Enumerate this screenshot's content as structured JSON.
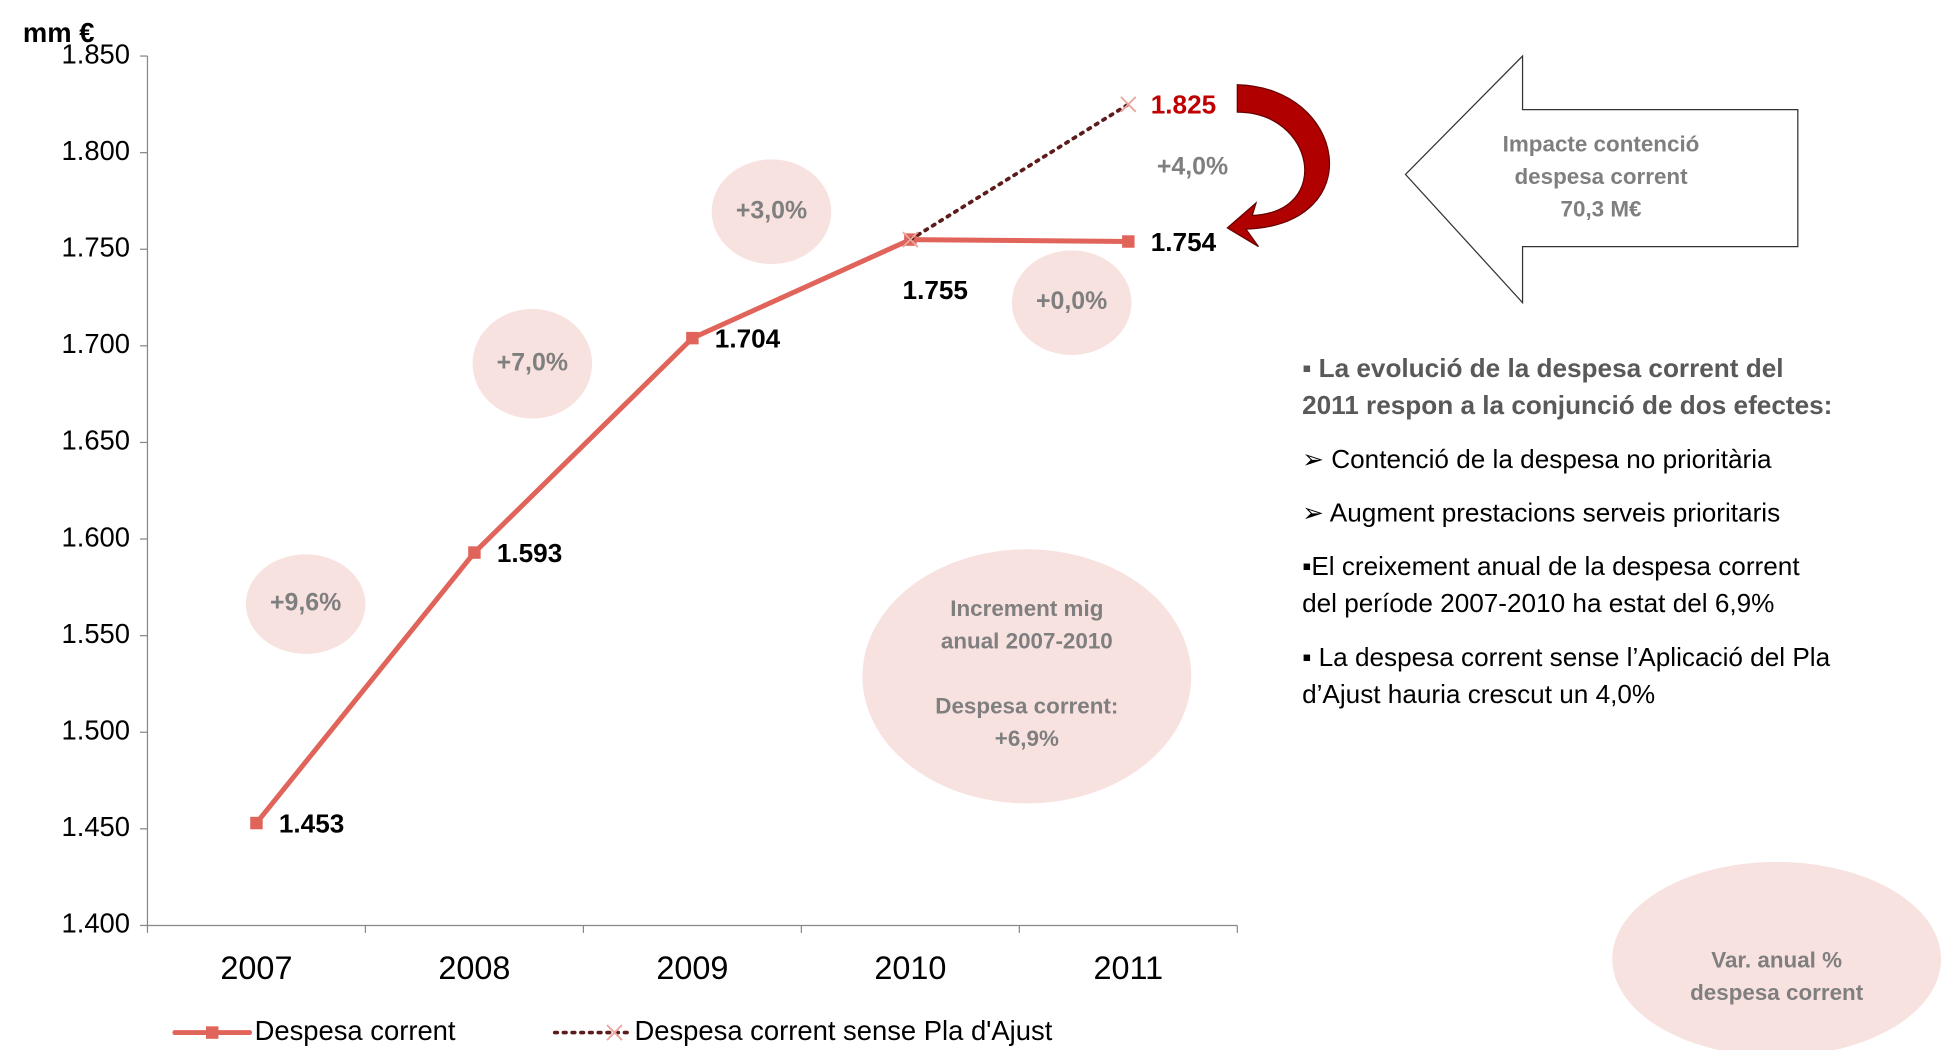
{
  "chart_data": {
    "type": "line",
    "y_label": "mm €",
    "categories": [
      "2007",
      "2008",
      "2009",
      "2010",
      "2011"
    ],
    "series": [
      {
        "name": "Despesa corrent",
        "color": "#e0645a",
        "values": [
          1453,
          1593,
          1704,
          1755,
          1754
        ],
        "value_labels": [
          "1.453",
          "1.593",
          "1.704",
          "1.755",
          "1.754"
        ]
      },
      {
        "name": "Despesa corrent sense Pla d'Ajust",
        "color": "#5c1c1c",
        "values": [
          null,
          null,
          null,
          1755,
          1825
        ],
        "value_labels": [
          null,
          null,
          null,
          null,
          "1.825"
        ]
      }
    ],
    "ylim": [
      1400,
      1850
    ],
    "yticks": [
      {
        "value": 1400,
        "label": "1.400"
      },
      {
        "value": 1450,
        "label": "1.450"
      },
      {
        "value": 1500,
        "label": "1.500"
      },
      {
        "value": 1550,
        "label": "1.550"
      },
      {
        "value": 1600,
        "label": "1.600"
      },
      {
        "value": 1650,
        "label": "1.650"
      },
      {
        "value": 1700,
        "label": "1.700"
      },
      {
        "value": 1750,
        "label": "1.750"
      },
      {
        "value": 1800,
        "label": "1.800"
      },
      {
        "value": 1850,
        "label": "1.850"
      }
    ],
    "annotations": [
      {
        "lines": [
          "+9,6%"
        ]
      },
      {
        "lines": [
          "+7,0%"
        ]
      },
      {
        "lines": [
          "+3,0%"
        ]
      },
      {
        "lines": [
          "+0,0%"
        ]
      },
      {
        "lines": [
          "+4,0%"
        ]
      },
      {
        "lines": [
          "Increment mig",
          "anual 2007-2010",
          "",
          "Despesa corrent:",
          "+6,9%"
        ]
      },
      {
        "lines": [
          "Impacte contenció",
          "despesa corrent",
          "70,3 M€"
        ]
      },
      {
        "lines": [
          "Var. anual  %",
          "despesa corrent"
        ]
      }
    ],
    "notes": [
      {
        "lines": [
          "▪ La evolució de la despesa corrent del",
          "2011 respon a la conjunció de dos efectes:"
        ],
        "bold": true
      },
      {
        "lines": [
          "➢ Contenció de la despesa no prioritària"
        ],
        "bold": false
      },
      {
        "lines": [
          "➢ Augment prestacions serveis prioritaris"
        ],
        "bold": false
      },
      {
        "lines": [
          "▪El creixement anual de la despesa corrent",
          "del període 2007-2010 ha estat del 6,9%"
        ],
        "bold": false
      },
      {
        "lines": [
          "▪ La despesa corrent sense l’Aplicació del Pla",
          "d’Ajust hauria crescut un 4,0%"
        ],
        "bold": false
      }
    ]
  }
}
